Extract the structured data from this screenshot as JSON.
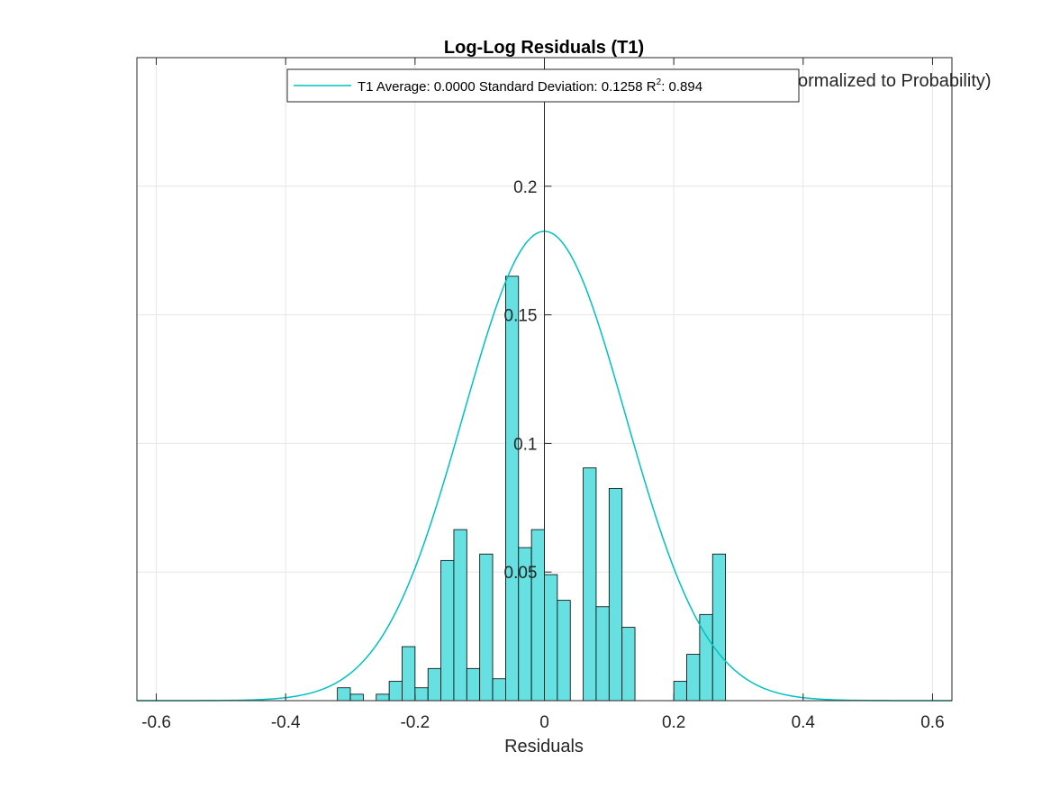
{
  "chart_data": {
    "type": "bar",
    "title": "Log-Log Residuals (T1)",
    "xlabel": "Residuals",
    "ylabel_visible": "ormalized to Probability)",
    "xlim": [
      -0.63,
      0.63
    ],
    "ylim": [
      0,
      0.25
    ],
    "grid": true,
    "legend_placement": "top-center",
    "x_ticks": [
      -0.6,
      -0.4,
      -0.2,
      0,
      0.2,
      0.4,
      0.6
    ],
    "x_tick_labels": [
      "-0.6",
      "-0.4",
      "-0.2",
      "0",
      "0.2",
      "0.4",
      "0.6"
    ],
    "y_ticks": [
      0.05,
      0.1,
      0.15,
      0.2
    ],
    "y_tick_labels": [
      "0.05",
      "0.1",
      "0.15",
      "0.2"
    ],
    "histogram": {
      "bin_edges": [
        -0.32,
        -0.3,
        -0.28,
        -0.26,
        -0.24,
        -0.22,
        -0.2,
        -0.18,
        -0.16,
        -0.14,
        -0.12,
        -0.1,
        -0.08,
        -0.06,
        -0.04,
        -0.02,
        0.0,
        0.02,
        0.04,
        0.06,
        0.08,
        0.1,
        0.12,
        0.14,
        0.16,
        0.18,
        0.2,
        0.22,
        0.24,
        0.26,
        0.28
      ],
      "values": [
        0.005,
        0.0025,
        0.0,
        0.0025,
        0.0075,
        0.021,
        0.005,
        0.0125,
        0.0545,
        0.0665,
        0.0125,
        0.057,
        0.0085,
        0.165,
        0.0595,
        0.0665,
        0.049,
        0.039,
        0.0,
        0.0905,
        0.0365,
        0.0825,
        0.0285,
        0.0,
        0.0,
        0.0,
        0.0075,
        0.018,
        0.0335,
        0.057
      ],
      "fill_color": "#66e0e0",
      "edge_color": "#000000"
    },
    "series": [
      {
        "name": "T1 Average: 0.0000 Standard Deviation: 0.1258 R²: 0.894",
        "type": "line",
        "mean": 0.0,
        "std": 0.1258,
        "peak": 0.1825,
        "color": "#00c0c0"
      }
    ],
    "legend": {
      "entry_prefix": "T1 Average: 0.0000 Standard Deviation: 0.1258 R",
      "entry_superscript": "2",
      "entry_suffix": ": 0.894"
    }
  }
}
